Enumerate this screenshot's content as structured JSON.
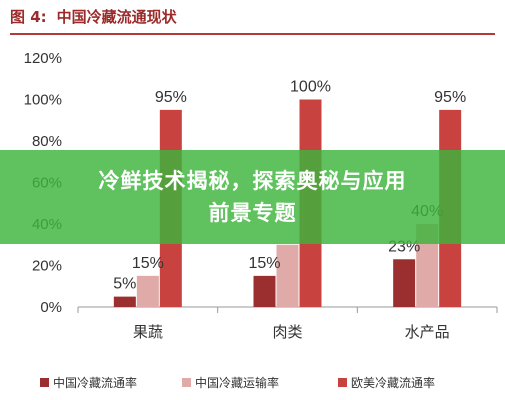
{
  "figure": {
    "label": "图 4:",
    "title": "中国冷藏流通现状"
  },
  "overlay": {
    "line1": "冷鲜技术揭秘，探索奥秘与应用",
    "line2": "前景专题"
  },
  "colors": {
    "accent": "#b23a3a",
    "overlay": "#3cb43c"
  },
  "chart_data": {
    "type": "bar",
    "categories": [
      "果蔬",
      "肉类",
      "水产品"
    ],
    "series": [
      {
        "name": "中国冷藏流通率",
        "values": [
          5,
          15,
          23
        ],
        "color": "#9b2f2f"
      },
      {
        "name": "中国冷藏运输率",
        "values": [
          15,
          30,
          40
        ],
        "color": "#e0aaa8"
      },
      {
        "name": "欧美冷藏流通率",
        "values": [
          95,
          100,
          95
        ],
        "color": "#c8433f"
      }
    ],
    "data_labels": [
      {
        "series": 0,
        "category": 0,
        "text": "5%"
      },
      {
        "series": 1,
        "category": 0,
        "text": "15%"
      },
      {
        "series": 2,
        "category": 0,
        "text": "95%"
      },
      {
        "series": 0,
        "category": 1,
        "text": "15%"
      },
      {
        "series": 2,
        "category": 1,
        "text": "100%"
      },
      {
        "series": 0,
        "category": 2,
        "text": "23%"
      },
      {
        "series": 1,
        "category": 2,
        "text": "40%"
      },
      {
        "series": 2,
        "category": 2,
        "text": "95%"
      }
    ],
    "yticks": [
      "0%",
      "20%",
      "40%",
      "60%",
      "80%",
      "100%",
      "120%"
    ],
    "ylim": [
      0,
      120
    ],
    "grid": false,
    "legend_position": "bottom"
  }
}
